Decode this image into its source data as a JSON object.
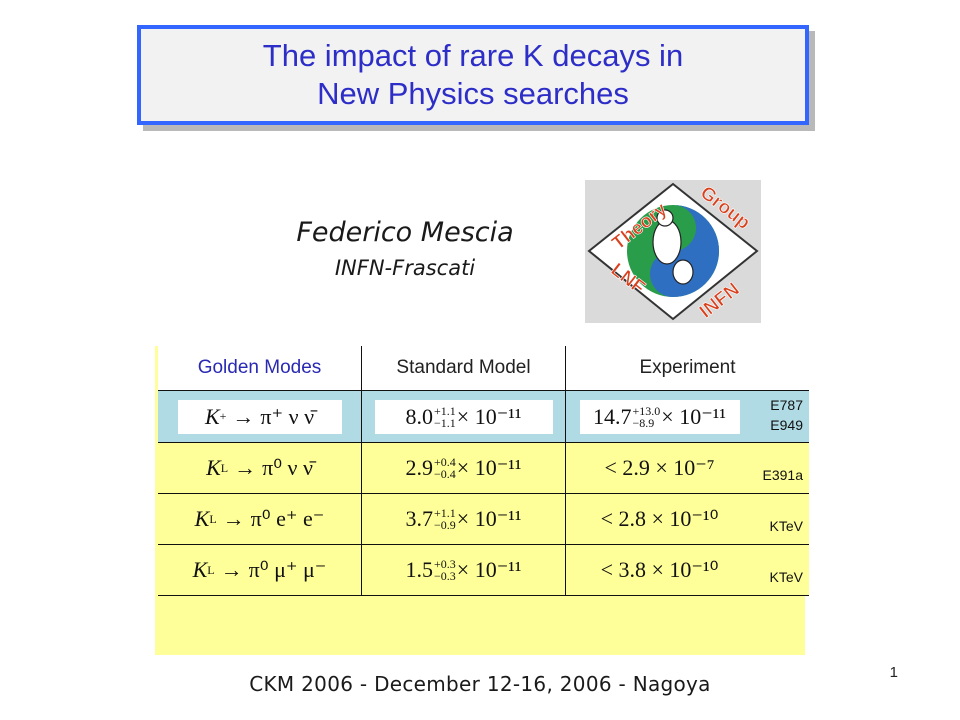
{
  "title": {
    "line1": "The impact of rare K decays in",
    "line2": "New Physics searches"
  },
  "author": {
    "name": "Federico Mescia",
    "institution": "INFN-Frascati"
  },
  "logo": {
    "word_top_left": "Theory",
    "word_top_right": "Group",
    "word_bottom_left": "LNF",
    "word_bottom_right": "INFN"
  },
  "table": {
    "headers": [
      "Golden Modes",
      "Standard Model",
      "Experiment"
    ],
    "rows": [
      {
        "mode_main": "K",
        "mode_sup": "+",
        "mode_products": "π⁺ ν ν̄",
        "sm_main": "8.0",
        "sm_plus": "+1.1",
        "sm_minus": "−1.1",
        "sm_tail": "× 10⁻¹¹",
        "exp_prefix": "",
        "exp_main": "14.7",
        "exp_plus": "+13.0",
        "exp_minus": "−8.9",
        "exp_tail": "× 10⁻¹¹",
        "experiment": "E787\nE949"
      },
      {
        "mode_main": "K",
        "mode_sub": "L",
        "mode_products": "π⁰ ν ν̄",
        "sm_main": "2.9",
        "sm_plus": "+0.4",
        "sm_minus": "−0.4",
        "sm_tail": "× 10⁻¹¹",
        "exp_prefix": "<",
        "exp_main": "2.9",
        "exp_plus": "",
        "exp_minus": "",
        "exp_tail": "× 10⁻⁷",
        "experiment": "E391a"
      },
      {
        "mode_main": "K",
        "mode_sub": "L",
        "mode_products": "π⁰ e⁺ e⁻",
        "sm_main": "3.7",
        "sm_plus": "+1.1",
        "sm_minus": "−0.9",
        "sm_tail": "× 10⁻¹¹",
        "exp_prefix": "<",
        "exp_main": "2.8",
        "exp_plus": "",
        "exp_minus": "",
        "exp_tail": "× 10⁻¹⁰",
        "experiment": "KTeV"
      },
      {
        "mode_main": "K",
        "mode_sub": "L",
        "mode_products": "π⁰ μ⁺ μ⁻",
        "sm_main": "1.5",
        "sm_plus": "+0.3",
        "sm_minus": "−0.3",
        "sm_tail": "× 10⁻¹¹",
        "exp_prefix": "<",
        "exp_main": "3.8",
        "exp_plus": "",
        "exp_minus": "",
        "exp_tail": "× 10⁻¹⁰",
        "experiment": "KTeV"
      }
    ]
  },
  "footer": "CKM 2006 - December 12-16, 2006 -  Nagoya",
  "page_number": "1",
  "colors": {
    "title_border": "#3366ff",
    "title_text": "#2d2dc8",
    "blue_row": "#b0dbe4",
    "yellow_rows": "#ffff99"
  }
}
